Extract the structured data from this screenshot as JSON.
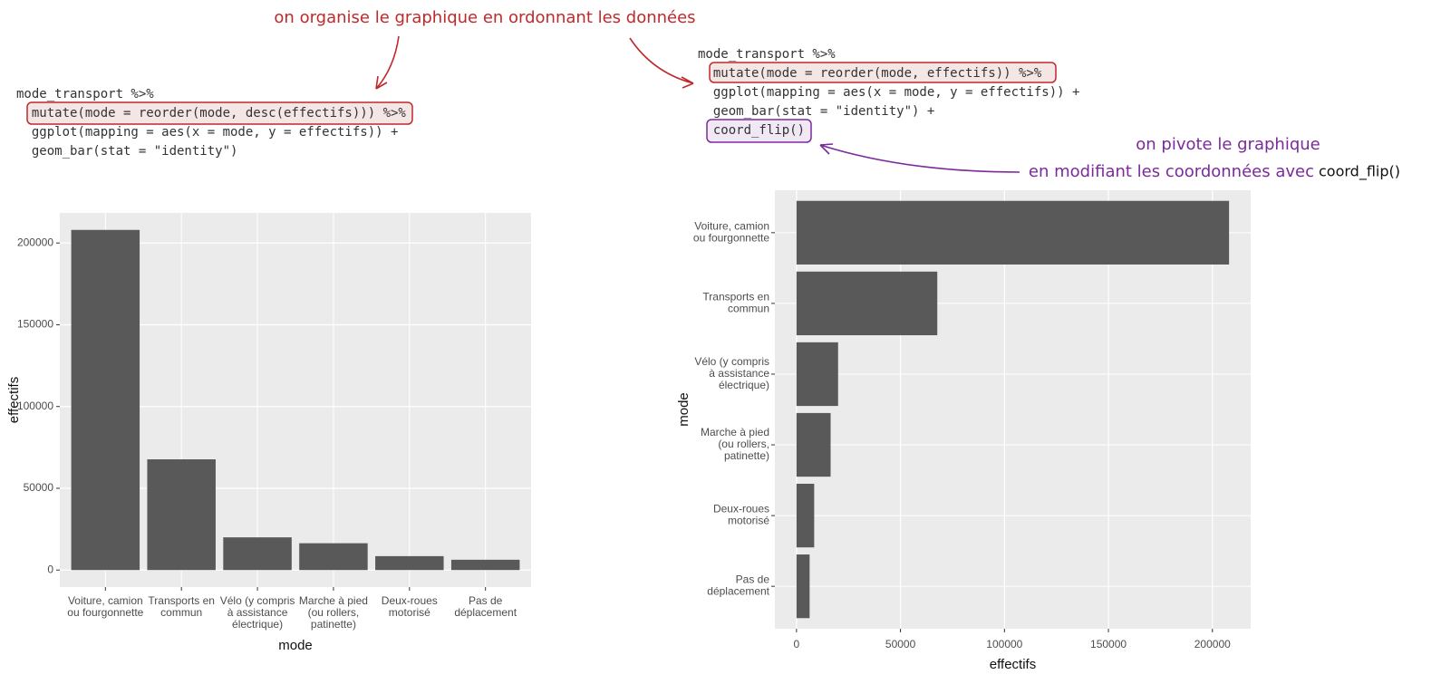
{
  "annotations": {
    "reorder_note": "on organise le graphique en ordonnant les données",
    "flip_note_1": "on pivote le graphique",
    "flip_note_2": "en modifiant les coordonnées avec",
    "flip_note_code": "coord_flip()"
  },
  "code_left": {
    "lines": [
      "mode_transport %>%",
      "  mutate(mode = reorder(mode, desc(effectifs))) %>%",
      "  ggplot(mapping = aes(x = mode, y = effectifs)) +",
      "  geom_bar(stat = \"identity\")"
    ]
  },
  "code_right": {
    "lines": [
      "mode_transport %>%",
      "  mutate(mode = reorder(mode, effectifs)) %>%",
      "  ggplot(mapping = aes(x = mode, y = effectifs)) +",
      "  geom_bar(stat = \"identity\") +",
      "  coord_flip()"
    ]
  },
  "chart_data": [
    {
      "type": "bar",
      "orientation": "vertical",
      "x_label": "mode",
      "y_label": "effectifs",
      "categories": [
        "Voiture, camion\nou fourgonnette",
        "Transports en\ncommun",
        "Vélo (y compris\nà assistance\nélectrique)",
        "Marche à pied\n(ou rollers,\npatinette)",
        "Deux-roues\nmotorisé",
        "Pas de\ndéplacement"
      ],
      "values": [
        208000,
        67700,
        20000,
        16400,
        8500,
        6300
      ],
      "color": "#595959",
      "panel_color": "#ebebeb",
      "grid": true,
      "ylim": [
        -10400,
        218400
      ],
      "yticks": [
        0,
        50000,
        100000,
        150000,
        200000
      ]
    },
    {
      "type": "bar",
      "orientation": "horizontal",
      "x_label": "effectifs",
      "y_label": "mode",
      "categories": [
        "Pas de\ndéplacement",
        "Deux-roues\nmotorisé",
        "Marche à pied\n(ou rollers,\npatinette)",
        "Vélo (y compris\nà assistance\nélectrique)",
        "Transports en\ncommun",
        "Voiture, camion\nou fourgonnette"
      ],
      "values": [
        6300,
        8500,
        16400,
        20000,
        67700,
        208000
      ],
      "color": "#595959",
      "panel_color": "#ebebeb",
      "grid": true,
      "xlim": [
        -10400,
        218400
      ],
      "xticks": [
        0,
        50000,
        100000,
        150000,
        200000
      ]
    }
  ]
}
